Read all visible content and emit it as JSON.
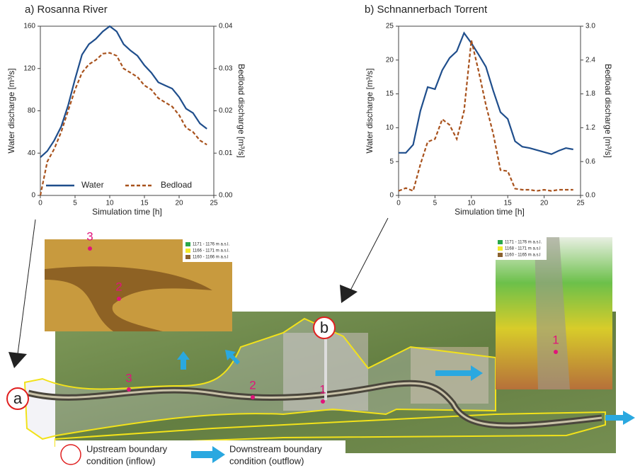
{
  "chart_data": [
    {
      "type": "line",
      "title": "a) Rosanna River",
      "x_label": "Simulation time [h]",
      "y_label": "Water discharge [m³/s]",
      "y2_label": "Bedload discharge [m³/s]",
      "x": [
        0,
        1,
        2,
        3,
        4,
        5,
        6,
        7,
        8,
        9,
        10,
        11,
        12,
        13,
        14,
        15,
        16,
        17,
        18,
        19,
        20,
        21,
        22,
        23,
        24
      ],
      "xlim": [
        0,
        25
      ],
      "xticks": [
        0,
        5,
        10,
        15,
        20,
        25
      ],
      "ylim": [
        0,
        160
      ],
      "yticks": [
        0,
        40,
        80,
        120,
        160
      ],
      "y2lim": [
        0,
        0.04
      ],
      "y2ticks": [
        {
          "value": 0,
          "label": "0.00"
        },
        0.01,
        0.02,
        0.03,
        0.04
      ],
      "legend": "lower center",
      "series": [
        {
          "name": "Water",
          "color": "#1f4e8c",
          "style": "solid",
          "values": [
            36,
            42,
            52,
            65,
            85,
            110,
            133,
            143,
            148,
            155,
            160,
            155,
            143,
            137,
            132,
            123,
            116,
            107,
            104,
            101,
            93,
            82,
            78,
            68,
            63
          ]
        },
        {
          "name": "Bedload",
          "color": "#a8521d",
          "style": "dashed",
          "axis": "y2",
          "values": [
            0,
            0.008,
            0.011,
            0.015,
            0.02,
            0.025,
            0.029,
            0.031,
            0.032,
            0.0335,
            0.0337,
            0.033,
            0.03,
            0.029,
            0.028,
            0.026,
            0.025,
            0.023,
            0.022,
            0.021,
            0.019,
            0.016,
            0.015,
            0.013,
            0.012
          ]
        }
      ]
    },
    {
      "type": "line",
      "title": "b) Schnannerbach Torrent",
      "x_label": "Simulation time [h]",
      "y_label": "Water discharge [m³/s]",
      "y2_label": "Bedload discharge [m³/s]",
      "x": [
        0,
        1,
        2,
        3,
        4,
        5,
        6,
        7,
        8,
        9,
        10,
        11,
        12,
        13,
        14,
        15,
        16,
        17,
        18,
        19,
        20,
        21,
        22,
        23,
        24
      ],
      "xlim": [
        0,
        25
      ],
      "xticks": [
        0,
        5,
        10,
        15,
        20,
        25
      ],
      "ylim": [
        0,
        25
      ],
      "yticks": [
        0,
        5,
        10,
        15,
        20,
        25
      ],
      "y2lim": [
        0,
        3
      ],
      "y2ticks": [
        {
          "value": 0,
          "label": "0.0"
        },
        0.6,
        1.2,
        1.8,
        2.4,
        {
          "value": 3,
          "label": "3.0"
        }
      ],
      "legend": false,
      "series": [
        {
          "name": "Water",
          "color": "#1f4e8c",
          "style": "solid",
          "values": [
            6.3,
            6.3,
            7.5,
            12.5,
            16,
            15.7,
            18.5,
            20.3,
            21.3,
            24,
            22.5,
            20.8,
            19,
            15.5,
            12.3,
            11.3,
            8,
            7.2,
            7,
            6.7,
            6.4,
            6.1,
            6.6,
            7,
            6.8
          ]
        },
        {
          "name": "Bedload",
          "color": "#a8521d",
          "style": "dashed",
          "axis": "y2",
          "values": [
            0.08,
            0.13,
            0.08,
            0.55,
            0.95,
            1.0,
            1.35,
            1.25,
            1.0,
            1.5,
            2.75,
            2.2,
            1.6,
            1.1,
            0.45,
            0.43,
            0.12,
            0.1,
            0.1,
            0.08,
            0.1,
            0.08,
            0.1,
            0.1,
            0.1
          ]
        }
      ]
    }
  ],
  "map": {
    "site_a": "a",
    "site_b": "b",
    "points_main": [
      "3",
      "2",
      "1"
    ],
    "points_left_inset": [
      "3",
      "2"
    ],
    "point_right_inset": "1",
    "left_inset_legend": [
      "1171 - 1176 m a.s.l.",
      "1166 - 1171 m a.s.l.",
      "1160 - 1166 m a.s.l"
    ],
    "right_inset_legend": [
      "1171 - 1176 m a.s.l.",
      "1168 - 1171 m a.s.l",
      "1160 - 1165 m a.s.l"
    ],
    "legend_upstream": [
      "Upstream boundary",
      "condition (inflow)"
    ],
    "legend_downstream": [
      "Downstream boundary",
      "condition (outflow)"
    ]
  }
}
